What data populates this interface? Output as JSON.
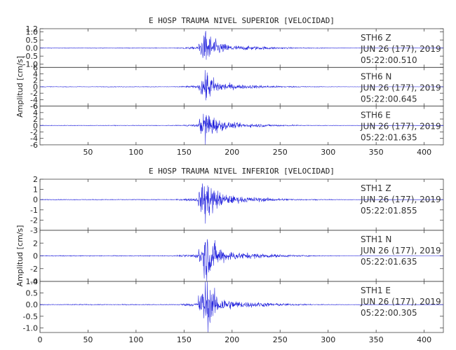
{
  "chart_data": [
    {
      "type": "line",
      "title": "E HOSP TRAUMA NIVEL SUPERIOR [VELOCIDAD]",
      "ylabel": "Amplitud [cm/s]",
      "xlabel": "",
      "xlim": [
        0,
        420
      ],
      "xticks": [
        50,
        100,
        150,
        200,
        250,
        300,
        350,
        400
      ],
      "trace_color": "#1a1adb",
      "panels": [
        {
          "station": "STH6",
          "component": "Z",
          "date": "JUN 26 (177), 2019",
          "time": "05:22:00.510",
          "ylim": [
            -1.2,
            1.2
          ],
          "yticks": [
            1.2,
            1.0,
            0.5,
            0.0,
            -0.5,
            -1.0
          ],
          "peak": 1.2
        },
        {
          "station": "STH6",
          "component": "N",
          "date": "JUN 26 (177), 2019",
          "time": "05:22:00.645",
          "ylim": [
            -6,
            6
          ],
          "yticks": [
            6,
            4,
            2,
            0,
            -2,
            -4,
            -6
          ],
          "peak": 5.5
        },
        {
          "station": "STH6",
          "component": "E",
          "date": "JUN 26 (177), 2019",
          "time": "05:22:01.635",
          "ylim": [
            -6,
            6
          ],
          "yticks": [
            6,
            4,
            2,
            0,
            -2,
            -4,
            -6
          ],
          "peak": 5.8
        }
      ]
    },
    {
      "type": "line",
      "title": "E HOSP TRAUMA NIVEL INFERIOR [VELOCIDAD]",
      "ylabel": "Amplitud [cm/s]",
      "xlabel": "",
      "xlim": [
        0,
        420
      ],
      "xticks": [
        0,
        50,
        100,
        150,
        200,
        250,
        300,
        350,
        400
      ],
      "trace_color": "#1a1adb",
      "panels": [
        {
          "station": "STH1",
          "component": "Z",
          "date": "JUN 26 (177), 2019",
          "time": "05:22:01.855",
          "ylim": [
            -3,
            2
          ],
          "yticks": [
            2,
            1,
            0,
            -1,
            -2,
            -3
          ],
          "peak": 2.5
        },
        {
          "station": "STH1",
          "component": "N",
          "date": "JUN 26 (177), 2019",
          "time": "05:22:01.635",
          "ylim": [
            -4,
            4
          ],
          "yticks": [
            2,
            0,
            -2,
            -4
          ],
          "peak": 4.5
        },
        {
          "station": "STH1",
          "component": "E",
          "date": "JUN 26 (177), 2019",
          "time": "05:22:00.305",
          "ylim": [
            -1.2,
            1.0
          ],
          "yticks": [
            1.0,
            0.5,
            0.0,
            -0.5,
            -1.0
          ],
          "peak": 1.2
        }
      ]
    }
  ]
}
